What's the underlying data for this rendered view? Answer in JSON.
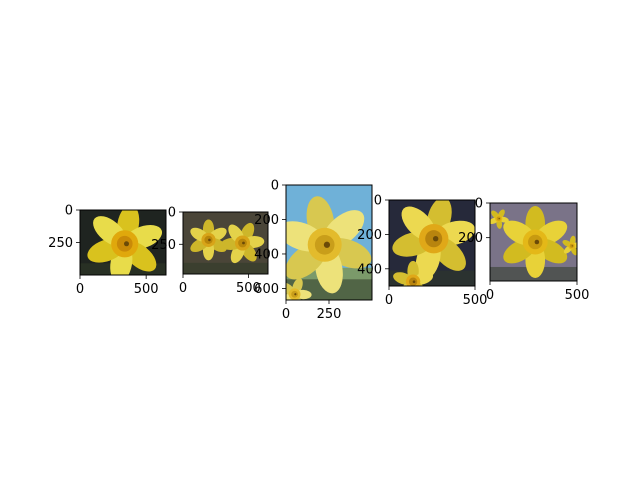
{
  "chart_data": [
    {
      "type": "image",
      "image_size": [
        650,
        500
      ],
      "x_ticks": [
        0,
        500
      ],
      "y_ticks": [
        0,
        250
      ],
      "theme": "single daffodil, yellow trumpet, dark background",
      "palette": {
        "bg": "#1f2420",
        "petal": "#e8dc4a",
        "petal_dark": "#d9c21e",
        "trumpet": "#e0a80c",
        "trumpet_dark": "#c98a08"
      }
    },
    {
      "type": "image",
      "image_size": [
        650,
        480
      ],
      "x_ticks": [
        0,
        500
      ],
      "y_ticks": [
        0,
        250
      ],
      "theme": "two daffodils in a garden",
      "palette": {
        "bg": "#4a4538",
        "petal": "#e4d24a",
        "petal_dark": "#cdb62a",
        "trumpet": "#d8a418",
        "trumpet_dark": "#b8860b"
      }
    },
    {
      "type": "image",
      "image_size": [
        500,
        667
      ],
      "x_ticks": [
        0,
        250
      ],
      "y_ticks": [
        0,
        200,
        400,
        600
      ],
      "theme": "close-up daffodil against blue sky",
      "palette": {
        "bg": "#6fb1d8",
        "petal": "#ede27a",
        "petal_dark": "#d8c850",
        "trumpet": "#e3bb2c",
        "trumpet_dark": "#c99e1a"
      }
    },
    {
      "type": "image",
      "image_size": [
        500,
        500
      ],
      "x_ticks": [
        0,
        500
      ],
      "y_ticks": [
        0,
        200,
        400
      ],
      "theme": "daffodil with dark leafy background",
      "palette": {
        "bg": "#26293a",
        "petal": "#ecd950",
        "petal_dark": "#d4be30",
        "trumpet": "#e0a818",
        "trumpet_dark": "#b8840e"
      }
    },
    {
      "type": "image",
      "image_size": [
        500,
        450
      ],
      "x_ticks": [
        0,
        500
      ],
      "y_ticks": [
        0,
        200
      ],
      "theme": "daffodil with blurred purple-grey background",
      "palette": {
        "bg": "#7a7388",
        "petal": "#e8d238",
        "petal_dark": "#d2bb20",
        "trumpet": "#e4b818",
        "trumpet_dark": "#c89a10"
      }
    }
  ]
}
